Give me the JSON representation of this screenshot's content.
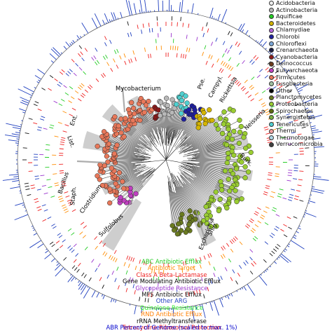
{
  "legend": [
    {
      "label": "Acidobacteria",
      "color": "#f0f0f0"
    },
    {
      "label": "Actinobacteria",
      "color": "#b8b8b8"
    },
    {
      "label": "Aquificae",
      "color": "#22cc22"
    },
    {
      "label": "Bacteroidetes",
      "color": "#d4b400"
    },
    {
      "label": "Chlamydiae",
      "color": "#b266d8"
    },
    {
      "label": "Chlorobi",
      "color": "#2020a0"
    },
    {
      "label": "Chloroflexi",
      "color": "#7aa6d8"
    },
    {
      "label": "Crenarchaeota",
      "color": "#1a1a40"
    },
    {
      "label": "Cyanobacteria",
      "color": "#8b1a1a"
    },
    {
      "label": "Deinococcus",
      "color": "#6b3a1a"
    },
    {
      "label": "Euryarchaeota",
      "color": "#c040c0"
    },
    {
      "label": "Firmicutes",
      "color": "#e8785a"
    },
    {
      "label": "Fusobacteria",
      "color": "#a0c0a0"
    },
    {
      "label": "Other",
      "color": "#000000"
    },
    {
      "label": "Planctomycetes",
      "color": "#6a7a20"
    },
    {
      "label": "Proteobacteria",
      "color": "#9acd32"
    },
    {
      "label": "Spirochaetes",
      "color": "#5a6a10"
    },
    {
      "label": "Synergistetes",
      "color": "#7ab040"
    },
    {
      "label": "Tenericutes",
      "color": "#50d0d0"
    },
    {
      "label": "Thermi",
      "color": "#f0a0a0"
    },
    {
      "label": "Thermotogae",
      "color": "#b0d8e8"
    },
    {
      "label": "Verrucomicrobia",
      "color": "#404040"
    }
  ],
  "ring_key": [
    {
      "label": "ABC Antibiotic Efflux",
      "color": "#22cc22"
    },
    {
      "label": "Antibiotic Target",
      "color": "#ff8c00"
    },
    {
      "label": "Class A Beta-Lactamase",
      "color": "#ee2020"
    },
    {
      "label": "Gene Modulating Antibiotic Efflux",
      "color": "#000000"
    },
    {
      "label": "Glycopeptide Resistance",
      "color": "#9932cc"
    },
    {
      "label": "MFS Antibiotic Efflux",
      "color": "#111111"
    },
    {
      "label": "Other ARG",
      "color": "#1f3fbf"
    },
    {
      "label": "Quinolone Resistance",
      "color": "#33ee33"
    },
    {
      "label": "RND Antibiotic Efflux",
      "color": "#ff7f00"
    },
    {
      "label": "rRNA Methyltransferase",
      "color": "#000000"
    },
    {
      "label": "Tetracycline Ribosomal Protection",
      "color": "#ee2020"
    }
  ],
  "footnote": "ABR Percent of Genome (scaled to max. 1%)",
  "clade_labels": {
    "mycobacterium": "Mycobacterium",
    "pse": "Pse.",
    "campyl": "Campyl.",
    "rickettsia": "Rickettsia",
    "neisseria": "Neisseria",
    "burk": "Burk.",
    "list": "List.",
    "ent": "Ent.",
    "bacillus": "Bacillus",
    "staph": "Staph.",
    "clostridium": "Clostridium",
    "sulfolobus": "Sulfolobus",
    "escherichia": "Escherichia",
    "shig": "Shig."
  }
}
